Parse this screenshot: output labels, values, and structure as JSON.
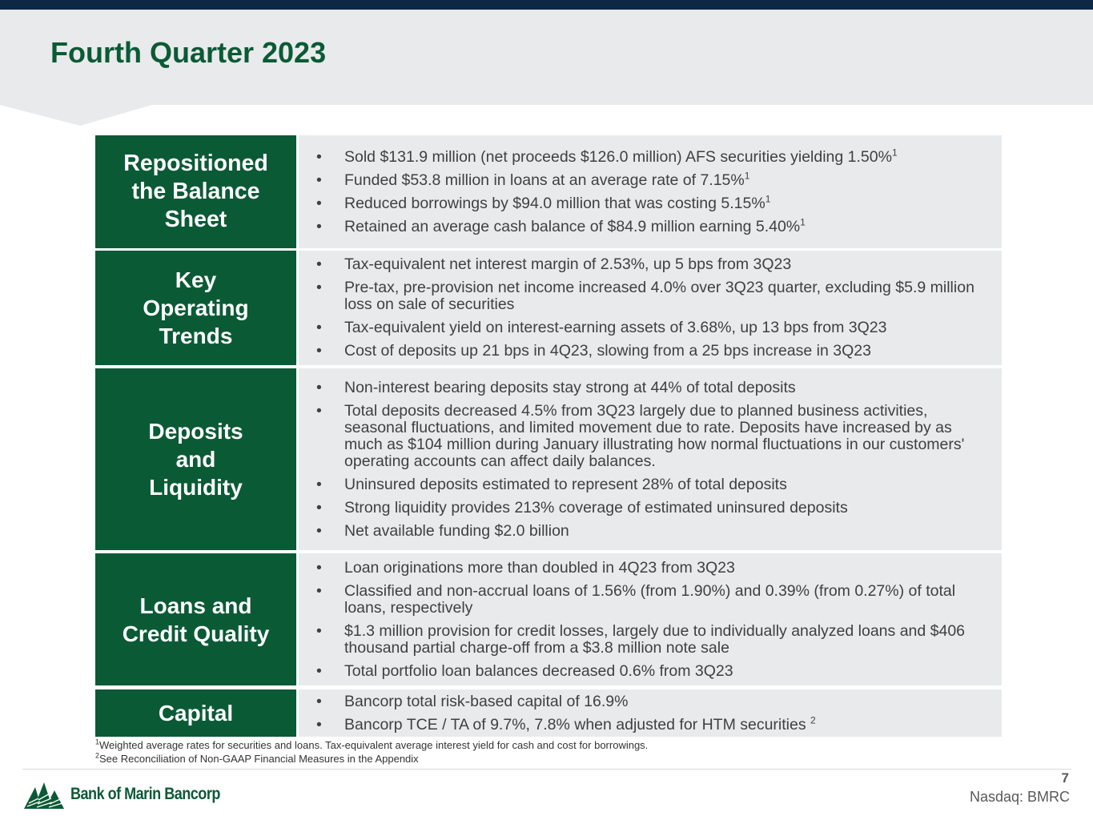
{
  "header": {
    "title": "Fourth Quarter 2023"
  },
  "sections": [
    {
      "label_lines": [
        "Repositioned",
        "the Balance",
        "Sheet"
      ],
      "bullets": [
        {
          "text": "Sold $131.9 million (net proceeds $126.0 million) AFS securities yielding 1.50%",
          "sup": "1"
        },
        {
          "text": "Funded $53.8 million in loans at an average rate of  7.15%",
          "sup": "1"
        },
        {
          "text": "Reduced borrowings by $94.0 million that was costing 5.15%",
          "sup": "1"
        },
        {
          "text": "Retained an average cash balance of $84.9 million earning 5.40%",
          "sup": "1"
        }
      ]
    },
    {
      "label_lines": [
        "Key",
        "Operating",
        "Trends"
      ],
      "bullets": [
        {
          "text": "Tax-equivalent net interest margin of 2.53%, up 5 bps from 3Q23",
          "sup": ""
        },
        {
          "text": "Pre-tax, pre-provision net income increased 4.0% over 3Q23 quarter, excluding $5.9 million loss on sale of securities",
          "sup": ""
        },
        {
          "text": "Tax-equivalent yield on interest-earning assets of 3.68%, up 13 bps from 3Q23",
          "sup": ""
        },
        {
          "text": "Cost of deposits up 21 bps in 4Q23, slowing from a 25 bps increase in 3Q23",
          "sup": ""
        }
      ]
    },
    {
      "label_lines": [
        "Deposits",
        "and",
        "Liquidity"
      ],
      "bullets": [
        {
          "text": "Non-interest bearing deposits stay strong at 44% of total deposits",
          "sup": ""
        },
        {
          "text": "Total deposits decreased 4.5% from 3Q23 largely due to planned business activities, seasonal fluctuations, and limited movement due to rate.  Deposits have increased by as much as $104 million during January illustrating how normal fluctuations in our customers' operating accounts can affect daily balances.",
          "sup": ""
        },
        {
          "text": "Uninsured deposits estimated to represent 28% of total deposits",
          "sup": ""
        },
        {
          "text": "Strong liquidity provides 213% coverage of estimated uninsured deposits",
          "sup": ""
        },
        {
          "text": "Net available funding $2.0 billion",
          "sup": ""
        }
      ]
    },
    {
      "label_lines": [
        "Loans and",
        "Credit Quality"
      ],
      "bullets": [
        {
          "text": "Loan originations more than doubled in 4Q23 from 3Q23",
          "sup": ""
        },
        {
          "text": "Classified and non-accrual loans of 1.56% (from 1.90%) and 0.39% (from 0.27%) of total loans, respectively",
          "sup": ""
        },
        {
          "text": "$1.3 million provision for credit losses, largely due to individually analyzed loans and $406 thousand partial charge-off from a $3.8 million note sale",
          "sup": ""
        },
        {
          "text": "Total portfolio loan balances decreased 0.6% from 3Q23",
          "sup": ""
        }
      ]
    },
    {
      "label_lines": [
        "Capital"
      ],
      "bullets": [
        {
          "text": "Bancorp total risk-based capital of 16.9%",
          "sup": ""
        },
        {
          "text": "Bancorp TCE / TA of 9.7%, 7.8% when adjusted for HTM securities ",
          "sup": "2"
        }
      ]
    }
  ],
  "bullet_char": "•",
  "footnotes": [
    {
      "mark": "1",
      "text": "Weighted average rates for securities and loans. Tax-equivalent average interest yield for cash and cost for borrowings."
    },
    {
      "mark": "2",
      "text": "See Reconciliation of Non-GAAP Financial Measures in the Appendix"
    }
  ],
  "footer": {
    "logo_text": "Bank of Marin Bancorp",
    "page_number": "7",
    "ticker": "Nasdaq: BMRC"
  },
  "colors": {
    "brand_green": "#0b5a36",
    "navy_bar": "#0d2745",
    "panel_gray": "#e9eaec"
  }
}
